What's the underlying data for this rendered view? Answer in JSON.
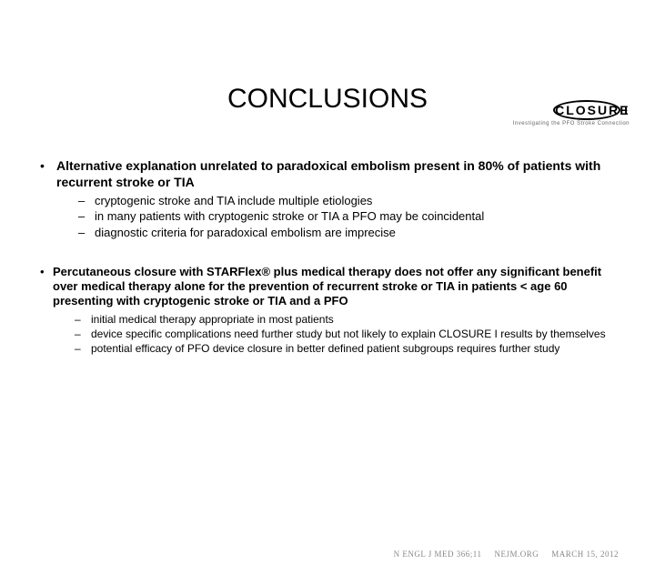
{
  "logo": {
    "main": "CLOSURE",
    "suffix": "I",
    "subtitle": "Investigating the PFO Stroke Connection"
  },
  "title": "CONCLUSIONS",
  "bullets": [
    {
      "text": "Alternative explanation unrelated to paradoxical embolism present in 80% of patients with recurrent stroke or TIA",
      "subs": [
        "cryptogenic stroke and TIA include multiple etiologies",
        "in many patients with cryptogenic stroke or TIA a PFO may be coincidental",
        "diagnostic criteria for paradoxical embolism are imprecise"
      ]
    },
    {
      "text": "Percutaneous closure with STARFlex® plus medical therapy does not offer any significant benefit over medical therapy alone for the prevention of recurrent stroke or TIA in patients < age 60 presenting  with cryptogenic stroke or TIA and a PFO",
      "subs": [
        "initial medical therapy appropriate in most patients",
        "device specific complications need further study but not likely to explain CLOSURE I results by themselves",
        "potential efficacy of PFO device closure in better defined patient subgroups requires further study"
      ]
    }
  ],
  "footer": {
    "journal": "N ENGL J MED 366;11",
    "site": "NEJM.ORG",
    "date": "MARCH 15, 2012"
  },
  "colors": {
    "background": "#ffffff",
    "text": "#000000",
    "footer": "#888888"
  }
}
